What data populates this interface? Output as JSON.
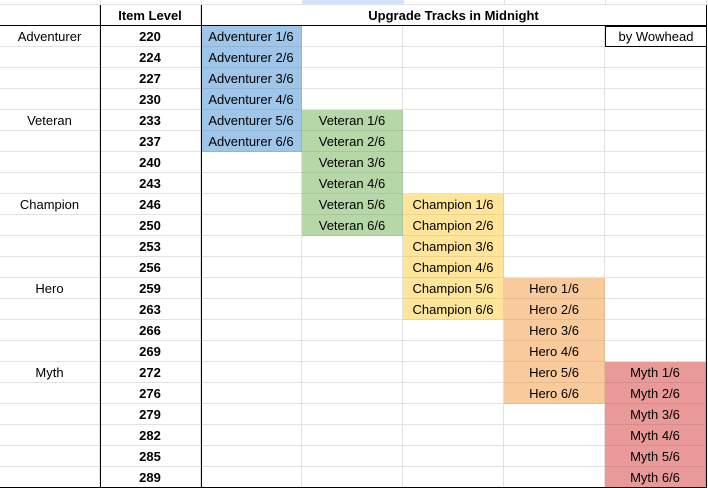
{
  "header": {
    "item_level_label": "Item Level",
    "title": "Upgrade Tracks in Midnight",
    "credit": "by Wowhead"
  },
  "colors": {
    "Adventurer": "#9fc5e8",
    "Veteran": "#b6d7a8",
    "Champion": "#ffe599",
    "Hero": "#f9cb9c",
    "Myth": "#ea9999",
    "selected_column_header": "#d3e3fd"
  },
  "rows": [
    {
      "tier": "Adventurer",
      "ilvl": "220",
      "tracks": [
        "Adventurer 1/6",
        "",
        "",
        "",
        ""
      ]
    },
    {
      "tier": "",
      "ilvl": "224",
      "tracks": [
        "Adventurer 2/6",
        "",
        "",
        "",
        ""
      ]
    },
    {
      "tier": "",
      "ilvl": "227",
      "tracks": [
        "Adventurer 3/6",
        "",
        "",
        "",
        ""
      ]
    },
    {
      "tier": "",
      "ilvl": "230",
      "tracks": [
        "Adventurer 4/6",
        "",
        "",
        "",
        ""
      ]
    },
    {
      "tier": "Veteran",
      "ilvl": "233",
      "tracks": [
        "Adventurer 5/6",
        "Veteran 1/6",
        "",
        "",
        ""
      ]
    },
    {
      "tier": "",
      "ilvl": "237",
      "tracks": [
        "Adventurer 6/6",
        "Veteran 2/6",
        "",
        "",
        ""
      ]
    },
    {
      "tier": "",
      "ilvl": "240",
      "tracks": [
        "",
        "Veteran 3/6",
        "",
        "",
        ""
      ]
    },
    {
      "tier": "",
      "ilvl": "243",
      "tracks": [
        "",
        "Veteran 4/6",
        "",
        "",
        ""
      ]
    },
    {
      "tier": "Champion",
      "ilvl": "246",
      "tracks": [
        "",
        "Veteran 5/6",
        "Champion 1/6",
        "",
        ""
      ]
    },
    {
      "tier": "",
      "ilvl": "250",
      "tracks": [
        "",
        "Veteran 6/6",
        "Champion 2/6",
        "",
        ""
      ]
    },
    {
      "tier": "",
      "ilvl": "253",
      "tracks": [
        "",
        "",
        "Champion 3/6",
        "",
        ""
      ]
    },
    {
      "tier": "",
      "ilvl": "256",
      "tracks": [
        "",
        "",
        "Champion 4/6",
        "",
        ""
      ]
    },
    {
      "tier": "Hero",
      "ilvl": "259",
      "tracks": [
        "",
        "",
        "Champion 5/6",
        "Hero 1/6",
        ""
      ]
    },
    {
      "tier": "",
      "ilvl": "263",
      "tracks": [
        "",
        "",
        "Champion 6/6",
        "Hero 2/6",
        ""
      ]
    },
    {
      "tier": "",
      "ilvl": "266",
      "tracks": [
        "",
        "",
        "",
        "Hero 3/6",
        ""
      ]
    },
    {
      "tier": "",
      "ilvl": "269",
      "tracks": [
        "",
        "",
        "",
        "Hero 4/6",
        ""
      ]
    },
    {
      "tier": "Myth",
      "ilvl": "272",
      "tracks": [
        "",
        "",
        "",
        "Hero 5/6",
        "Myth 1/6"
      ]
    },
    {
      "tier": "",
      "ilvl": "276",
      "tracks": [
        "",
        "",
        "",
        "Hero 6/6",
        "Myth 2/6"
      ]
    },
    {
      "tier": "",
      "ilvl": "279",
      "tracks": [
        "",
        "",
        "",
        "",
        "Myth 3/6"
      ]
    },
    {
      "tier": "",
      "ilvl": "282",
      "tracks": [
        "",
        "",
        "",
        "",
        "Myth 4/6"
      ]
    },
    {
      "tier": "",
      "ilvl": "285",
      "tracks": [
        "",
        "",
        "",
        "",
        "Myth 5/6"
      ]
    },
    {
      "tier": "",
      "ilvl": "289",
      "tracks": [
        "",
        "",
        "",
        "",
        "Myth 6/6"
      ]
    }
  ]
}
